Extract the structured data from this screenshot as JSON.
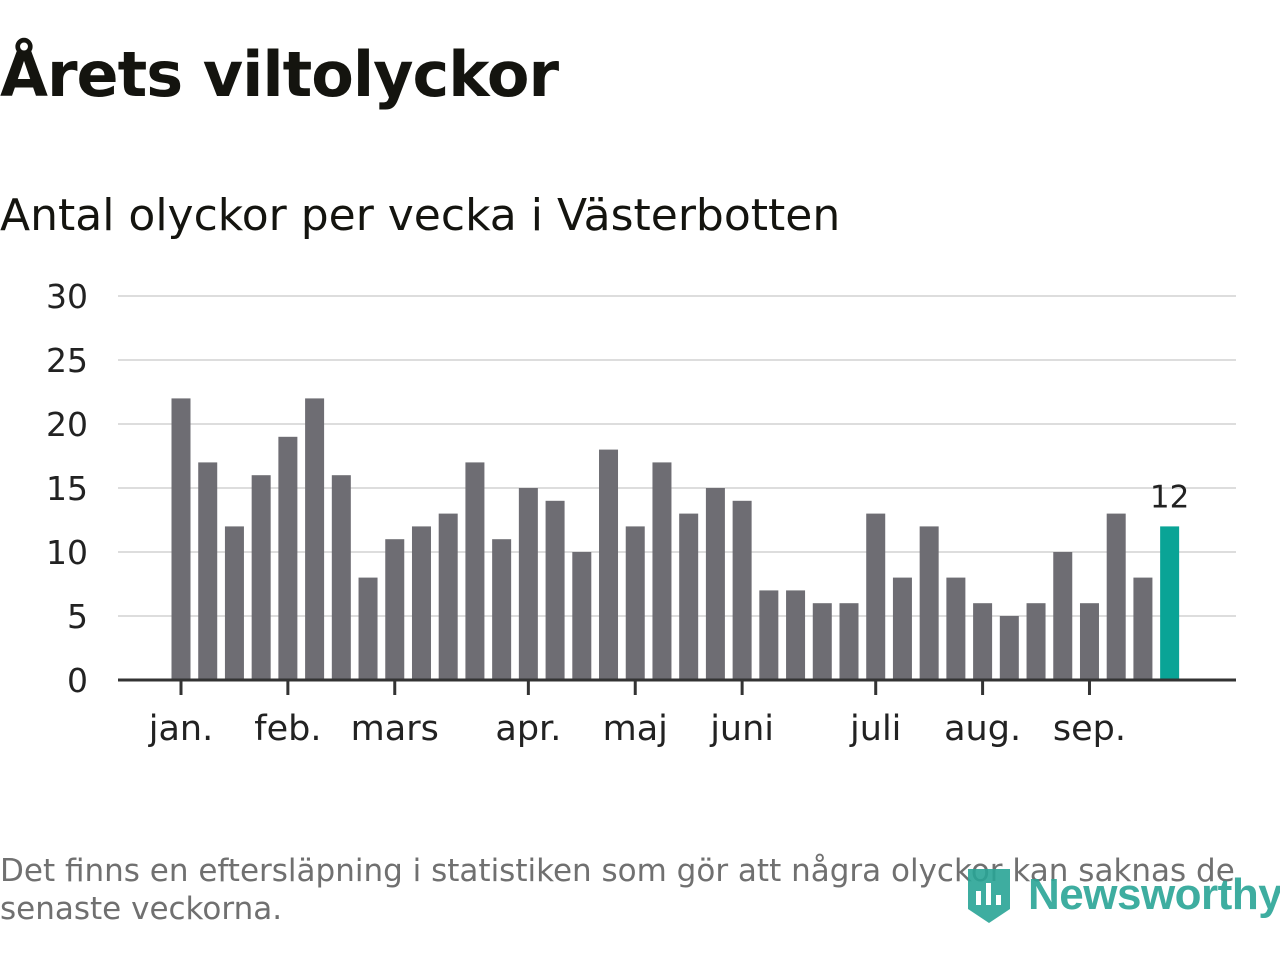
{
  "title": "Årets viltolyckor",
  "subtitle": "Antal olyckor per vecka i Västerbotten",
  "footnote": "Det finns en eftersläpning i statistiken som gör att några olyckor kan saknas de senaste veckorna.",
  "logo": {
    "text": "Newsworthy",
    "icon": "newsworthy-logo-icon"
  },
  "colors": {
    "bar": "#6e6d73",
    "highlight": "#0aa496",
    "grid": "#dddddd",
    "axis": "#333333",
    "text": "#14140f",
    "footnote": "#707070",
    "logo": "#2aa596"
  },
  "chart_data": {
    "type": "bar",
    "title": "Årets viltolyckor",
    "subtitle": "Antal olyckor per vecka i Västerbotten",
    "xlabel": "",
    "ylabel": "",
    "ylim": [
      0,
      30
    ],
    "yticks": [
      0,
      5,
      10,
      15,
      20,
      25,
      30
    ],
    "grid": true,
    "unit": "week",
    "weeks": [
      1,
      2,
      3,
      4,
      5,
      6,
      7,
      8,
      9,
      10,
      11,
      12,
      13,
      14,
      15,
      16,
      17,
      18,
      19,
      20,
      21,
      22,
      23,
      24,
      25,
      26,
      27,
      28,
      29,
      30,
      31,
      32,
      33,
      34,
      35,
      36,
      37,
      38
    ],
    "values": [
      22,
      17,
      12,
      16,
      19,
      22,
      16,
      8,
      11,
      12,
      13,
      17,
      11,
      15,
      14,
      10,
      18,
      12,
      17,
      13,
      15,
      14,
      7,
      7,
      6,
      6,
      13,
      8,
      12,
      8,
      6,
      5,
      6,
      10,
      6,
      13,
      8,
      12
    ],
    "highlight_index": 37,
    "highlight_label": "12",
    "month_labels": [
      {
        "label": "jan.",
        "week": 1
      },
      {
        "label": "feb.",
        "week": 5
      },
      {
        "label": "mars",
        "week": 9
      },
      {
        "label": "apr.",
        "week": 14
      },
      {
        "label": "maj",
        "week": 18
      },
      {
        "label": "juni",
        "week": 22
      },
      {
        "label": "juli",
        "week": 27
      },
      {
        "label": "aug.",
        "week": 31
      },
      {
        "label": "sep.",
        "week": 35
      }
    ]
  }
}
